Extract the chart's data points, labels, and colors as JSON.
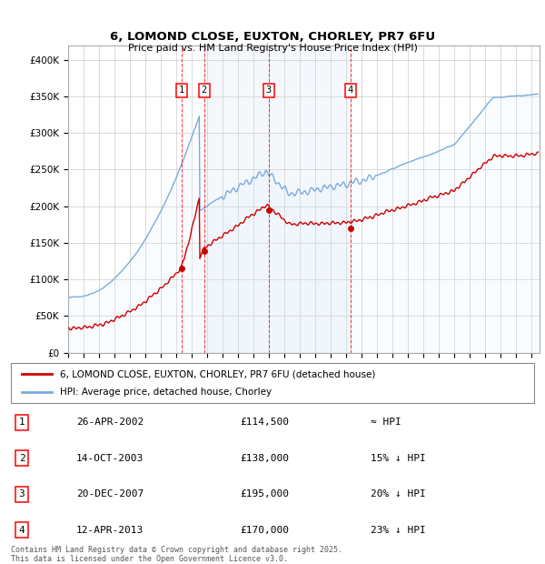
{
  "title": "6, LOMOND CLOSE, EUXTON, CHORLEY, PR7 6FU",
  "subtitle": "Price paid vs. HM Land Registry's House Price Index (HPI)",
  "ylim": [
    0,
    420000
  ],
  "yticks": [
    0,
    50000,
    100000,
    150000,
    200000,
    250000,
    300000,
    350000,
    400000
  ],
  "ytick_labels": [
    "£0",
    "£50K",
    "£100K",
    "£150K",
    "£200K",
    "£250K",
    "£300K",
    "£350K",
    "£400K"
  ],
  "xlim_start": 1995.0,
  "xlim_end": 2025.5,
  "bg_color": "#ffffff",
  "plot_bg_color": "#ffffff",
  "grid_color": "#cccccc",
  "red_line_color": "#cc0000",
  "blue_line_color": "#7aaddd",
  "blue_fill_color": "#ddeeff",
  "transactions": [
    {
      "id": 1,
      "date": "26-APR-2002",
      "year": 2002.32,
      "price": 114500,
      "label": "≈ HPI"
    },
    {
      "id": 2,
      "date": "14-OCT-2003",
      "year": 2003.79,
      "price": 138000,
      "label": "15% ↓ HPI"
    },
    {
      "id": 3,
      "date": "20-DEC-2007",
      "year": 2007.97,
      "price": 195000,
      "label": "20% ↓ HPI"
    },
    {
      "id": 4,
      "date": "12-APR-2013",
      "year": 2013.28,
      "price": 170000,
      "label": "23% ↓ HPI"
    }
  ],
  "legend_label_red": "6, LOMOND CLOSE, EUXTON, CHORLEY, PR7 6FU (detached house)",
  "legend_label_blue": "HPI: Average price, detached house, Chorley",
  "footer": "Contains HM Land Registry data © Crown copyright and database right 2025.\nThis data is licensed under the Open Government Licence v3.0."
}
